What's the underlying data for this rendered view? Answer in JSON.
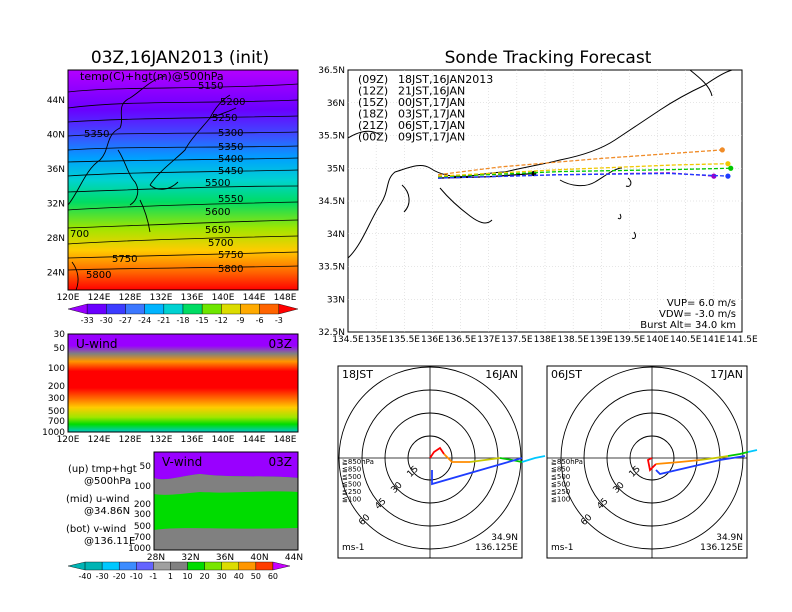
{
  "left_title": "03Z,16JAN2013 (init)",
  "right_title": "Sonde Tracking Forecast",
  "map500": {
    "label": "temp(C)+hgt(m)@500hPa",
    "lat_ticks": [
      "44N",
      "40N",
      "36N",
      "32N",
      "28N",
      "24N"
    ],
    "lon_ticks": [
      "120E",
      "124E",
      "128E",
      "132E",
      "136E",
      "140E",
      "144E",
      "148E"
    ],
    "contour_labels": [
      "5150",
      "5200",
      "5250",
      "5300",
      "5350",
      "5400",
      "5450",
      "5500",
      "5550",
      "5600",
      "5650",
      "5700",
      "5750",
      "5800",
      "5350",
      "700",
      "5750",
      "5800"
    ],
    "colorbar_labels": [
      "-33",
      "-30",
      "-27",
      "-24",
      "-21",
      "-18",
      "-15",
      "-12",
      "-9",
      "-6",
      "-3"
    ],
    "colorbar_colors": [
      "#9900ff",
      "#6a00ff",
      "#3c3cff",
      "#3c78ff",
      "#00b4ff",
      "#00d2d2",
      "#00dc64",
      "#6ee600",
      "#dcdc00",
      "#ffaa00",
      "#ff6400",
      "#ff0000"
    ]
  },
  "uwind": {
    "label": "U-wind",
    "time": "03Z",
    "p_ticks": [
      "30",
      "50",
      "100",
      "200",
      "300",
      "500",
      "700",
      "1000"
    ],
    "lon_ticks": [
      "120E",
      "124E",
      "128E",
      "132E",
      "136E",
      "140E",
      "144E",
      "148E"
    ]
  },
  "vwind": {
    "label": "V-wind",
    "time": "03Z",
    "p_ticks": [
      "50",
      "100",
      "200",
      "300",
      "500",
      "700",
      "1000"
    ],
    "lat_ticks": [
      "28N",
      "32N",
      "36N",
      "40N",
      "44N"
    ],
    "colorbar_labels": [
      "-40",
      "-30",
      "-20",
      "-10",
      "-1",
      "1",
      "10",
      "20",
      "30",
      "40",
      "50",
      "60"
    ],
    "colorbar_colors": [
      "#00b4b4",
      "#00c8ff",
      "#3c8cff",
      "#6464ff",
      "#a0a0a0",
      "#808080",
      "#00dc00",
      "#78e600",
      "#dcdc00",
      "#ff9600",
      "#ff3c00",
      "#c800ff"
    ]
  },
  "notes": [
    {
      "a": "(up) tmp+hgt",
      "b": "@500hPa"
    },
    {
      "a": "(mid) u-wind",
      "b": "@34.86N"
    },
    {
      "a": "(bot) v-wind",
      "b": "@136.11E"
    }
  ],
  "track_map": {
    "lat_ticks": [
      "36.5N",
      "36N",
      "35.5N",
      "35N",
      "34.5N",
      "34N",
      "33.5N",
      "33N",
      "32.5N"
    ],
    "lon_ticks": [
      "134.5E",
      "135E",
      "135.5E",
      "136E",
      "136.5E",
      "137E",
      "137.5E",
      "138E",
      "138.5E",
      "139E",
      "139.5E",
      "140E",
      "140.5E",
      "141E",
      "141.5E"
    ],
    "legend": [
      {
        "code": "(09Z)",
        "time": "18JST,16JAN2013",
        "color": "#000000"
      },
      {
        "code": "(12Z)",
        "time": "21JST,16JAN",
        "color": "#9900cc"
      },
      {
        "code": "(15Z)",
        "time": "00JST,17JAN",
        "color": "#1e3cff"
      },
      {
        "code": "(18Z)",
        "time": "03JST,17JAN",
        "color": "#00c800"
      },
      {
        "code": "(21Z)",
        "time": "06JST,17JAN",
        "color": "#f0c800"
      },
      {
        "code": "(00Z)",
        "time": "09JST,17JAN",
        "color": "#f08c28"
      }
    ],
    "info": [
      "VUP= 6.0 m/s",
      "VDW= -3.0 m/s",
      "Burst Alt= 34.0 km"
    ]
  },
  "hodo1": {
    "time": "18JST",
    "date": "16JAN",
    "lat": "34.9N",
    "lon": "136.125E",
    "unit": "ms-1"
  },
  "hodo2": {
    "time": "06JST",
    "date": "17JAN",
    "lat": "34.9N",
    "lon": "136.125E",
    "unit": "ms-1"
  },
  "hodo_rings": [
    "15",
    "30",
    "45",
    "60"
  ],
  "hodo_legend": [
    {
      "label": "≧850hPa",
      "color": "#ff0000"
    },
    {
      "label": "≦850",
      "color": "#ff8c00"
    },
    {
      "label": "≦500",
      "color": "#c8c800"
    },
    {
      "label": "≦500",
      "color": "#00c800"
    },
    {
      "label": "≦250",
      "color": "#00c8ff"
    },
    {
      "label": "≦100",
      "color": "#1e3cff"
    }
  ],
  "chart_data": {
    "type": "line",
    "title": "Sonde Tracking Forecast",
    "xlim": [
      134.5,
      141.5
    ],
    "ylim": [
      32.5,
      36.5
    ],
    "series": [
      {
        "name": "(09Z) 18JST,16JAN2013",
        "x": [
          136.1,
          137.0,
          137.8
        ],
        "y": [
          34.85,
          34.87,
          34.92
        ]
      },
      {
        "name": "(12Z) 21JST,16JAN",
        "x": [
          136.1,
          138.2,
          140.2,
          141.0
        ],
        "y": [
          34.85,
          34.9,
          34.93,
          34.88
        ]
      },
      {
        "name": "(15Z) 00JST,17JAN",
        "x": [
          136.1,
          138.2,
          140.2,
          141.25
        ],
        "y": [
          34.85,
          34.9,
          34.92,
          34.88
        ]
      },
      {
        "name": "(18Z) 03JST,17JAN",
        "x": [
          136.1,
          138.3,
          140.3,
          141.3
        ],
        "y": [
          34.87,
          34.95,
          34.98,
          35.0
        ]
      },
      {
        "name": "(21Z) 06JST,17JAN",
        "x": [
          136.1,
          138.3,
          140.3,
          141.25
        ],
        "y": [
          34.88,
          34.98,
          35.05,
          35.07
        ]
      },
      {
        "name": "(00Z) 09JST,17JAN",
        "x": [
          136.1,
          137.2,
          139.0,
          141.15
        ],
        "y": [
          34.9,
          35.02,
          35.15,
          35.28
        ]
      }
    ]
  }
}
